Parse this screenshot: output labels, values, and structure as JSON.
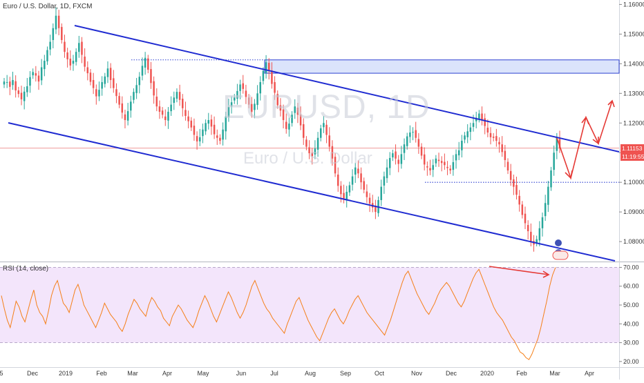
{
  "header": {
    "title": "Euro / U.S. Dollar, 1D, FXCM"
  },
  "watermark": {
    "symbol": "EURUSD, 1D",
    "name": "Euro / U.S. Dollar"
  },
  "price_tags": {
    "price": "1.11153",
    "countdown": "11:19:55"
  },
  "rsi_panel": {
    "label": "RSI (14, close)"
  },
  "colors": {
    "up": "#26a69a",
    "down": "#ef5350",
    "channel": "#1f2bd1",
    "rsi_line": "#f57f17",
    "rsi_band": "#f3e5fb",
    "arrows": "#e53935",
    "zone": "#dbe4fb"
  },
  "chart_data": [
    {
      "type": "candlestick",
      "title": "Euro / U.S. Dollar, 1D, FXCM",
      "x_ticks": [
        "5",
        "Dec",
        "2019",
        "Feb",
        "Mar",
        "Apr",
        "May",
        "Jun",
        "Jul",
        "Aug",
        "Sep",
        "Oct",
        "Nov",
        "Dec",
        "2020",
        "Feb",
        "Mar",
        "Apr"
      ],
      "y_ticks": [
        "1.16000",
        "1.15000",
        "1.14000",
        "1.13000",
        "1.12000",
        "1.11000",
        "1.10000",
        "1.09000",
        "1.08000"
      ],
      "ylim": [
        1.0735,
        1.1615
      ],
      "close_series": [
        1.134,
        1.1338,
        1.1322,
        1.1345,
        1.131,
        1.1298,
        1.128,
        1.1306,
        1.1324,
        1.1355,
        1.1372,
        1.136,
        1.134,
        1.1388,
        1.141,
        1.1446,
        1.1474,
        1.152,
        1.1562,
        1.152,
        1.148,
        1.144,
        1.1415,
        1.1394,
        1.141,
        1.144,
        1.147,
        1.143,
        1.139,
        1.1368,
        1.1339,
        1.1318,
        1.129,
        1.1312,
        1.1338,
        1.1357,
        1.1384,
        1.1345,
        1.1318,
        1.1291,
        1.1262,
        1.1235,
        1.121,
        1.124,
        1.1272,
        1.1305,
        1.1328,
        1.1356,
        1.1393,
        1.142,
        1.138,
        1.1335,
        1.1293,
        1.1256,
        1.1238,
        1.1228,
        1.121,
        1.1238,
        1.1262,
        1.1286,
        1.1305,
        1.1278,
        1.125,
        1.1224,
        1.1206,
        1.1185,
        1.116,
        1.1138,
        1.1152,
        1.1178,
        1.12,
        1.121,
        1.1188,
        1.1162,
        1.115,
        1.114,
        1.1178,
        1.1222,
        1.1254,
        1.127,
        1.1286,
        1.1308,
        1.133,
        1.1315,
        1.1288,
        1.1262,
        1.1238,
        1.1265,
        1.13,
        1.1338,
        1.1376,
        1.1405,
        1.1375,
        1.1332,
        1.1302,
        1.126,
        1.1242,
        1.121,
        1.118,
        1.1198,
        1.1228,
        1.1256,
        1.1228,
        1.1192,
        1.115,
        1.112,
        1.1098,
        1.1088,
        1.1114,
        1.115,
        1.1182,
        1.12,
        1.116,
        1.112,
        1.108,
        1.103,
        1.0988,
        1.096,
        1.0945,
        1.0968,
        1.099,
        1.102,
        1.105,
        1.103,
        1.1,
        1.0975,
        1.095,
        1.0928,
        1.0915,
        1.09,
        1.094,
        1.0985,
        1.102,
        1.105,
        1.1082,
        1.1098,
        1.108,
        1.1062,
        1.1095,
        1.1128,
        1.1155,
        1.1168,
        1.117,
        1.115,
        1.112,
        1.109,
        1.106,
        1.105,
        1.104,
        1.1058,
        1.108,
        1.1072,
        1.1065,
        1.1058,
        1.1048,
        1.104,
        1.1068,
        1.1095,
        1.1108,
        1.114,
        1.1158,
        1.1172,
        1.1185,
        1.12,
        1.1218,
        1.1232,
        1.1212,
        1.119,
        1.1168,
        1.1152,
        1.115,
        1.114,
        1.1128,
        1.1102,
        1.1075,
        1.104,
        1.1008,
        1.0985,
        1.0958,
        1.0925,
        1.089,
        1.0862,
        1.0835,
        1.08,
        1.079,
        1.0808,
        1.0845,
        1.0882,
        1.093,
        1.0985,
        1.104,
        1.11,
        1.115,
        1.1115
      ],
      "annotations": {
        "resistance_zone": [
          1.1368,
          1.1413
        ],
        "support_line": 1.1,
        "current_price_line": 1.11153
      }
    },
    {
      "type": "line",
      "title": "RSI (14, close)",
      "y_ticks": [
        "70.00",
        "60.00",
        "50.00",
        "40.00",
        "30.00",
        "20.00"
      ],
      "ylim": [
        17,
        72
      ],
      "band": [
        30,
        70
      ],
      "values": [
        55,
        48,
        42,
        38,
        45,
        52,
        49,
        44,
        41,
        47,
        53,
        58,
        50,
        46,
        44,
        40,
        47,
        55,
        60,
        63,
        57,
        51,
        49,
        46,
        52,
        58,
        61,
        56,
        50,
        47,
        44,
        41,
        38,
        42,
        46,
        51,
        48,
        45,
        43,
        41,
        38,
        36,
        40,
        45,
        49,
        53,
        51,
        48,
        46,
        44,
        50,
        54,
        52,
        49,
        47,
        43,
        41,
        39,
        44,
        47,
        50,
        48,
        45,
        42,
        40,
        38,
        42,
        47,
        51,
        55,
        52,
        48,
        44,
        41,
        45,
        49,
        53,
        57,
        54,
        50,
        46,
        43,
        46,
        50,
        55,
        60,
        63,
        59,
        55,
        51,
        48,
        46,
        43,
        41,
        39,
        37,
        35,
        40,
        44,
        48,
        52,
        54,
        50,
        46,
        42,
        39,
        36,
        33,
        31,
        35,
        39,
        43,
        46,
        48,
        45,
        42,
        40,
        43,
        47,
        50,
        53,
        55,
        52,
        49,
        46,
        44,
        42,
        40,
        38,
        36,
        34,
        38,
        42,
        47,
        52,
        57,
        62,
        66,
        68,
        64,
        60,
        56,
        53,
        50,
        47,
        45,
        48,
        51,
        55,
        58,
        60,
        62,
        60,
        57,
        54,
        51,
        49,
        52,
        56,
        60,
        64,
        67,
        69,
        65,
        61,
        57,
        53,
        49,
        46,
        44,
        42,
        39,
        36,
        33,
        31,
        28,
        25,
        24,
        22,
        21,
        24,
        28,
        32,
        38,
        45,
        52,
        60,
        66,
        70
      ]
    }
  ]
}
